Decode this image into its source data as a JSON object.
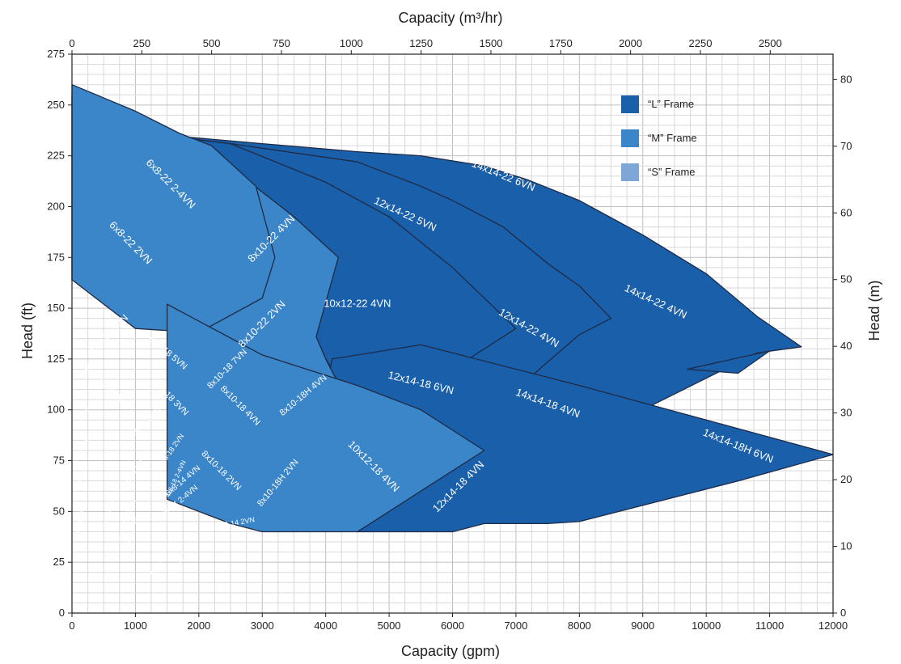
{
  "chart_data": {
    "type": "area",
    "title": "",
    "x_top_label": "Capacity (m³/hr)",
    "x_bottom_label": "Capacity (gpm)",
    "y_left_label": "Head (ft)",
    "y_right_label": "Head (m)",
    "x_gpm_range": [
      0,
      12000
    ],
    "y_ft_range": [
      0,
      275
    ],
    "x_m3hr_range": [
      0,
      2725
    ],
    "y_m_range": [
      0,
      83.8
    ],
    "x_gpm_ticks": [
      "0",
      "1000",
      "2000",
      "3000",
      "4000",
      "5000",
      "6000",
      "7000",
      "8000",
      "9000",
      "10000",
      "11000",
      "12000"
    ],
    "x_m3hr_ticks": [
      "0",
      "250",
      "500",
      "750",
      "1000",
      "1250",
      "1500",
      "1750",
      "2000",
      "2250",
      "2500"
    ],
    "y_ft_ticks": [
      "0",
      "25",
      "50",
      "75",
      "100",
      "125",
      "150",
      "175",
      "200",
      "225",
      "250",
      "275"
    ],
    "y_m_ticks": [
      "0",
      "10",
      "20",
      "30",
      "40",
      "50",
      "60",
      "70",
      "80"
    ],
    "grid": true,
    "legend": {
      "position": "top-right",
      "items": [
        {
          "label": "“L” Frame",
          "color": "#1a5faa"
        },
        {
          "label": "“M” Frame",
          "color": "#3b85c9"
        },
        {
          "label": "“S” Frame",
          "color": "#7ea7d8"
        }
      ]
    },
    "regions": [
      {
        "name": "14x14-22 6VN",
        "frame": "L",
        "points": [
          [
            1150,
            236
          ],
          [
            3000,
            231
          ],
          [
            4500,
            227
          ],
          [
            5500,
            225
          ],
          [
            6500,
            220
          ],
          [
            7200,
            213
          ],
          [
            8000,
            203
          ],
          [
            9000,
            186
          ],
          [
            10000,
            167
          ],
          [
            10800,
            146
          ],
          [
            11500,
            131
          ],
          [
            10800,
            128
          ],
          [
            9000,
            100
          ],
          [
            8000,
            93
          ],
          [
            7500,
            110
          ],
          [
            7000,
            129
          ],
          [
            6000,
            147
          ],
          [
            5000,
            157
          ]
        ],
        "label": {
          "text": "14x14-22 6VN",
          "x": 6800,
          "y": 215,
          "rot": 22,
          "size": 13
        }
      },
      {
        "name": "14x14-22 4VN",
        "frame": "L",
        "points": [
          [
            9700,
            120
          ],
          [
            10500,
            118
          ],
          [
            11000,
            129
          ]
        ],
        "label": {
          "text": "14x14-22 4VN",
          "x": 9200,
          "y": 153,
          "rot": 25,
          "size": 13
        }
      },
      {
        "name": "12x14-22 5VN",
        "frame": "L",
        "points": [
          [
            1150,
            236
          ],
          [
            2500,
            231
          ],
          [
            4500,
            222
          ],
          [
            5500,
            210
          ],
          [
            6000,
            203
          ],
          [
            6800,
            190
          ],
          [
            7500,
            172
          ],
          [
            8000,
            161
          ],
          [
            8500,
            145
          ],
          [
            8000,
            137
          ],
          [
            7000,
            110
          ],
          [
            6000,
            100
          ],
          [
            5500,
            110
          ],
          [
            5000,
            125
          ],
          [
            4000,
            148
          ]
        ],
        "label": {
          "text": "12x14-22 5VN",
          "x": 5250,
          "y": 196,
          "rot": 25,
          "size": 13
        }
      },
      {
        "name": "12x14-22 4VN",
        "frame": "L",
        "points": [],
        "label": {
          "text": "12x14-22 4VN",
          "x": 7200,
          "y": 140,
          "rot": 30,
          "size": 13
        }
      },
      {
        "name": "10x12-22 4VN",
        "frame": "L",
        "points": [
          [
            1150,
            236
          ],
          [
            2500,
            231
          ],
          [
            4000,
            212
          ],
          [
            5000,
            195
          ],
          [
            6000,
            170
          ],
          [
            7000,
            140
          ],
          [
            6000,
            120
          ],
          [
            5200,
            108
          ],
          [
            4300,
            110
          ],
          [
            4000,
            125
          ],
          [
            3850,
            136
          ],
          [
            4000,
            160
          ],
          [
            4150,
            175
          ],
          [
            3500,
            195
          ],
          [
            2200,
            223
          ]
        ],
        "label": {
          "text": "10x12-22 4VN",
          "x": 4500,
          "y": 152,
          "rot": 0,
          "size": 13
        }
      },
      {
        "name": "14x14-18H 6VN",
        "frame": "L",
        "points": [
          [
            5500,
            132
          ],
          [
            8000,
            112
          ],
          [
            10000,
            95
          ],
          [
            12000,
            78
          ],
          [
            10500,
            65
          ],
          [
            8000,
            45
          ],
          [
            7500,
            44
          ],
          [
            6500,
            44
          ],
          [
            6000,
            40
          ],
          [
            4500,
            40
          ],
          [
            5000,
            50
          ],
          [
            4200,
            75
          ],
          [
            4200,
            100
          ],
          [
            4000,
            108
          ],
          [
            4100,
            125
          ]
        ],
        "label": {
          "text": "14x14-18H 6VN",
          "x": 10500,
          "y": 82,
          "rot": 22,
          "size": 13
        }
      },
      {
        "name": "14x14-18 4VN",
        "frame": "L",
        "points": [],
        "label": {
          "text": "14x14-18 4VN",
          "x": 7500,
          "y": 103,
          "rot": 20,
          "size": 13
        }
      },
      {
        "name": "12x14-18 6VN",
        "frame": "L",
        "points": [],
        "label": {
          "text": "12x14-18 6VN",
          "x": 5500,
          "y": 113,
          "rot": 14,
          "size": 13
        }
      },
      {
        "name": "12x14-18 4VN",
        "frame": "L",
        "points": [],
        "label": {
          "text": "12x14-18 4VN",
          "x": 6100,
          "y": 62,
          "rot": -45,
          "size": 13
        }
      },
      {
        "name": "6x8-22 2-4VN",
        "frame": "M",
        "points": [
          [
            0,
            255
          ],
          [
            1000,
            244
          ],
          [
            2000,
            227
          ],
          [
            2800,
            212
          ],
          [
            3500,
            195
          ],
          [
            4200,
            175
          ],
          [
            3850,
            136
          ],
          [
            4000,
            125
          ],
          [
            4250,
            110
          ],
          [
            3000,
            119
          ],
          [
            2500,
            128
          ],
          [
            2000,
            140
          ],
          [
            1000,
            160
          ],
          [
            0,
            164
          ]
        ],
        "label": {
          "text": "6x8-22 2-4VN",
          "x": 1550,
          "y": 211,
          "rot": 45,
          "size": 13
        }
      },
      {
        "name": "6x8-22 2VN",
        "frame": "M",
        "points": [
          [
            0,
            260
          ],
          [
            1000,
            247
          ],
          [
            1700,
            236
          ],
          [
            2200,
            230
          ],
          [
            2900,
            210
          ],
          [
            3200,
            175
          ],
          [
            3000,
            155
          ],
          [
            2000,
            138
          ],
          [
            1000,
            140
          ],
          [
            0,
            164
          ]
        ],
        "label": {
          "text": "6x8-22 2VN",
          "x": 920,
          "y": 182,
          "rot": 45,
          "size": 13
        }
      },
      {
        "name": "8x10-22 4VN",
        "frame": "M",
        "points": [],
        "label": {
          "text": "8x10-22 4VN",
          "x": 3150,
          "y": 184,
          "rot": -45,
          "size": 13
        }
      },
      {
        "name": "8x10-22 2VN",
        "frame": "M",
        "points": [],
        "label": {
          "text": "8x10-22 2VN",
          "x": 3000,
          "y": 142,
          "rot": -45,
          "size": 13
        }
      },
      {
        "name": "10x12-18 4VN",
        "frame": "M",
        "points": [
          [
            1500,
            152
          ],
          [
            3000,
            127
          ],
          [
            4500,
            112
          ],
          [
            5500,
            100
          ],
          [
            6500,
            80
          ],
          [
            5500,
            60
          ],
          [
            5000,
            50
          ],
          [
            4500,
            40
          ],
          [
            4000,
            40
          ],
          [
            3000,
            40
          ],
          [
            2500,
            44
          ],
          [
            1500,
            56
          ]
        ],
        "label": {
          "text": "10x12-18 4VN",
          "x": 4750,
          "y": 72,
          "rot": 45,
          "size": 13
        }
      },
      {
        "name": "8x10-18H 4VN",
        "frame": "M",
        "points": [],
        "label": {
          "text": "8x10-18H 4VN",
          "x": 3650,
          "y": 107,
          "rot": -40,
          "size": 11
        }
      },
      {
        "name": "8x10-18H 2VN",
        "frame": "M",
        "points": [],
        "label": {
          "text": "8x10-18H 2VN",
          "x": 3250,
          "y": 64,
          "rot": -50,
          "size": 11
        }
      },
      {
        "name": "8x10-18 7VN",
        "frame": "M",
        "points": [],
        "label": {
          "text": "8x10-18 7VN",
          "x": 2450,
          "y": 120,
          "rot": -45,
          "size": 11
        }
      },
      {
        "name": "8x10-18 4VN",
        "frame": "M",
        "points": [],
        "label": {
          "text": "8x10-18 4VN",
          "x": 2650,
          "y": 102,
          "rot": 45,
          "size": 11
        }
      },
      {
        "name": "8x10-18 2VN",
        "frame": "M",
        "points": [],
        "label": {
          "text": "8x10-18 2VN",
          "x": 2350,
          "y": 70,
          "rot": 45,
          "size": 11
        }
      },
      {
        "name": "8x10-14 2VN",
        "frame": "M",
        "points": [],
        "label": {
          "text": "8x10-14 2VN",
          "x": 2550,
          "y": 44,
          "rot": -10,
          "size": 9
        }
      },
      {
        "name": "6x8-18 5VN",
        "frame": "S",
        "points": [],
        "label": {
          "text": "6x8-18 5VN",
          "x": 1510,
          "y": 128,
          "rot": 40,
          "size": 11
        }
      },
      {
        "name": "6x8-18 3VN",
        "frame": "S",
        "points": [],
        "label": {
          "text": "6x8-18 3VN",
          "x": 1550,
          "y": 106,
          "rot": 45,
          "size": 11
        }
      },
      {
        "name": "6x8-18 2VN",
        "frame": "S",
        "points": [],
        "label": {
          "text": "6x8-18 2VN",
          "x": 1570,
          "y": 80,
          "rot": -55,
          "size": 9
        }
      },
      {
        "name": "6x8-14 4VN",
        "frame": "S",
        "points": [],
        "label": {
          "text": "6x8-14 4VN",
          "x": 1750,
          "y": 65,
          "rot": -40,
          "size": 10
        }
      },
      {
        "name": "6x8-14 2-4VN",
        "frame": "S",
        "points": [],
        "label": {
          "text": "6X8-14 2-4VN",
          "x": 1660,
          "y": 54,
          "rot": -40,
          "size": 10
        }
      },
      {
        "name": "4x6-18 5VN",
        "frame": "S",
        "points": [],
        "label": {
          "text": "4x6-18 5VN",
          "x": 580,
          "y": 137,
          "rot": -45,
          "size": 12
        }
      },
      {
        "name": "6x8-14 2VN",
        "frame": "S",
        "points": [],
        "label": {
          "text": "6x8-14 2VN",
          "x": 490,
          "y": 113,
          "rot": 45,
          "size": 12
        }
      },
      {
        "name": "4x6-18 2-4VN",
        "frame": "S",
        "points": [],
        "label": {
          "text": "4x6-18 2-4VN",
          "x": 1640,
          "y": 66,
          "rot": -65,
          "size": 8
        }
      },
      {
        "name": "4x6-18 2VN",
        "frame": "S",
        "points": [],
        "label": {
          "text": "4x6-18 2VN",
          "x": 1450,
          "y": 28,
          "rot": -60,
          "size": 11
        }
      },
      {
        "name": "8x8-12 5VN",
        "frame": "S",
        "points": [],
        "label": {
          "text": "8x8-12 5VN",
          "x": 1760,
          "y": 28,
          "rot": -60,
          "size": 11
        }
      },
      {
        "name": "4x6-14 5VN",
        "frame": "S",
        "points": [],
        "label": {
          "text": "4x6-14 5VN",
          "x": 1150,
          "y": 93,
          "rot": -45,
          "size": 10
        }
      },
      {
        "name": "4x6-14 2-4VN",
        "frame": "S",
        "points": [],
        "label": {
          "text": "4x6-14 2-4VN",
          "x": 1010,
          "y": 70,
          "rot": -55,
          "size": 9
        }
      },
      {
        "name": "4x6-14 2VN",
        "frame": "S",
        "points": [],
        "label": {
          "text": "4x6-14 2VN",
          "x": 870,
          "y": 46,
          "rot": -70,
          "size": 10
        }
      },
      {
        "name": "6x8-12 5VN",
        "frame": "S",
        "points": [],
        "label": {
          "text": "6x8-12 5VN",
          "x": 950,
          "y": 40,
          "rot": -75,
          "size": 7
        }
      },
      {
        "name": "4x6-12 3VN",
        "frame": "S",
        "points": [],
        "label": {
          "text": "4x6-12 3VN",
          "x": 580,
          "y": 50,
          "rot": -80,
          "size": 8
        }
      },
      {
        "name": "3x6-14 5VN",
        "frame": "S",
        "points": [],
        "label": {
          "text": "3x6-14 5VN",
          "x": 160,
          "y": 96,
          "rot": -60,
          "size": 6
        }
      },
      {
        "name": "3x6-14 2-4VN",
        "frame": "S",
        "points": [],
        "label": {
          "text": "3x6-14 2-4VN",
          "x": 160,
          "y": 81,
          "rot": -60,
          "size": 6
        }
      },
      {
        "name": "3x6-14 2VN",
        "frame": "S",
        "points": [],
        "label": {
          "text": "3x6-14 2VN",
          "x": 130,
          "y": 66,
          "rot": -60,
          "size": 7
        }
      },
      {
        "name": "3x6-12 3VN",
        "frame": "S",
        "points": [],
        "label": {
          "text": "3x6-12 3VN",
          "x": 140,
          "y": 46,
          "rot": -80,
          "size": 7
        }
      }
    ]
  }
}
